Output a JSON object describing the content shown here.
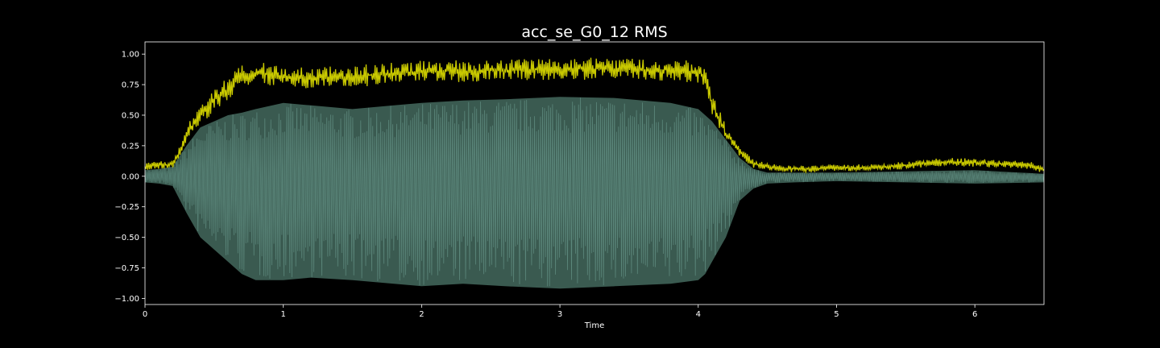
{
  "chart_data": {
    "type": "line",
    "title": "acc_se_G0_12 RMS",
    "xlabel": "Time",
    "ylabel": "",
    "xlim": [
      0,
      6.5
    ],
    "ylim": [
      -1.05,
      1.1
    ],
    "grid": false,
    "legend": "none",
    "x_ticks": [
      0,
      1,
      2,
      3,
      4,
      5,
      6
    ],
    "x_tick_labels": [
      "0",
      "1",
      "2",
      "3",
      "4",
      "5",
      "6"
    ],
    "y_ticks": [
      1.0,
      0.75,
      0.5,
      0.25,
      0.0,
      -0.25,
      -0.5,
      -0.75,
      -1.0
    ],
    "y_tick_labels": [
      "1.00",
      "0.75",
      "0.50",
      "0.25",
      "0.00",
      "−0.25",
      "−0.50",
      "−0.75",
      "−1.00"
    ],
    "colors": {
      "background": "#000000",
      "waveform_fill": "#3a5a50",
      "waveform_line": "#5f8c80",
      "rms_line": "#c8c800",
      "axes": "#ffffff"
    },
    "series": [
      {
        "kind": "waveform",
        "x": [
          0,
          0.1,
          0.2,
          0.3,
          0.4,
          0.5,
          0.6,
          0.7,
          0.8,
          1.0,
          1.2,
          1.5,
          1.8,
          2.0,
          2.3,
          2.6,
          3.0,
          3.4,
          3.8,
          4.0,
          4.05,
          4.1,
          4.2,
          4.3,
          4.4,
          4.5,
          4.7,
          5.0,
          5.5,
          6.0,
          6.5
        ],
        "upper": [
          0.05,
          0.06,
          0.08,
          0.25,
          0.4,
          0.45,
          0.5,
          0.52,
          0.55,
          0.6,
          0.58,
          0.55,
          0.58,
          0.6,
          0.62,
          0.63,
          0.65,
          0.64,
          0.6,
          0.55,
          0.5,
          0.45,
          0.3,
          0.15,
          0.06,
          0.03,
          0.03,
          0.03,
          0.04,
          0.05,
          0.02
        ],
        "lower": [
          -0.05,
          -0.06,
          -0.08,
          -0.3,
          -0.5,
          -0.6,
          -0.7,
          -0.8,
          -0.85,
          -0.85,
          -0.83,
          -0.85,
          -0.88,
          -0.9,
          -0.88,
          -0.9,
          -0.92,
          -0.9,
          -0.88,
          -0.85,
          -0.8,
          -0.7,
          -0.5,
          -0.2,
          -0.1,
          -0.06,
          -0.05,
          -0.04,
          -0.05,
          -0.06,
          -0.05
        ]
      },
      {
        "kind": "rms",
        "x": [
          0,
          0.1,
          0.2,
          0.25,
          0.3,
          0.4,
          0.5,
          0.6,
          0.7,
          0.8,
          1.0,
          1.2,
          1.5,
          1.8,
          2.0,
          2.3,
          2.6,
          3.0,
          3.4,
          3.8,
          4.0,
          4.05,
          4.1,
          4.2,
          4.3,
          4.4,
          4.6,
          4.8,
          5.0,
          5.2,
          5.4,
          5.6,
          5.8,
          6.0,
          6.2,
          6.4,
          6.5
        ],
        "y": [
          0.08,
          0.09,
          0.1,
          0.2,
          0.35,
          0.5,
          0.62,
          0.72,
          0.82,
          0.85,
          0.82,
          0.8,
          0.82,
          0.84,
          0.86,
          0.86,
          0.87,
          0.88,
          0.88,
          0.87,
          0.85,
          0.8,
          0.6,
          0.35,
          0.2,
          0.1,
          0.06,
          0.06,
          0.07,
          0.07,
          0.08,
          0.1,
          0.12,
          0.11,
          0.1,
          0.09,
          0.05
        ]
      }
    ]
  }
}
